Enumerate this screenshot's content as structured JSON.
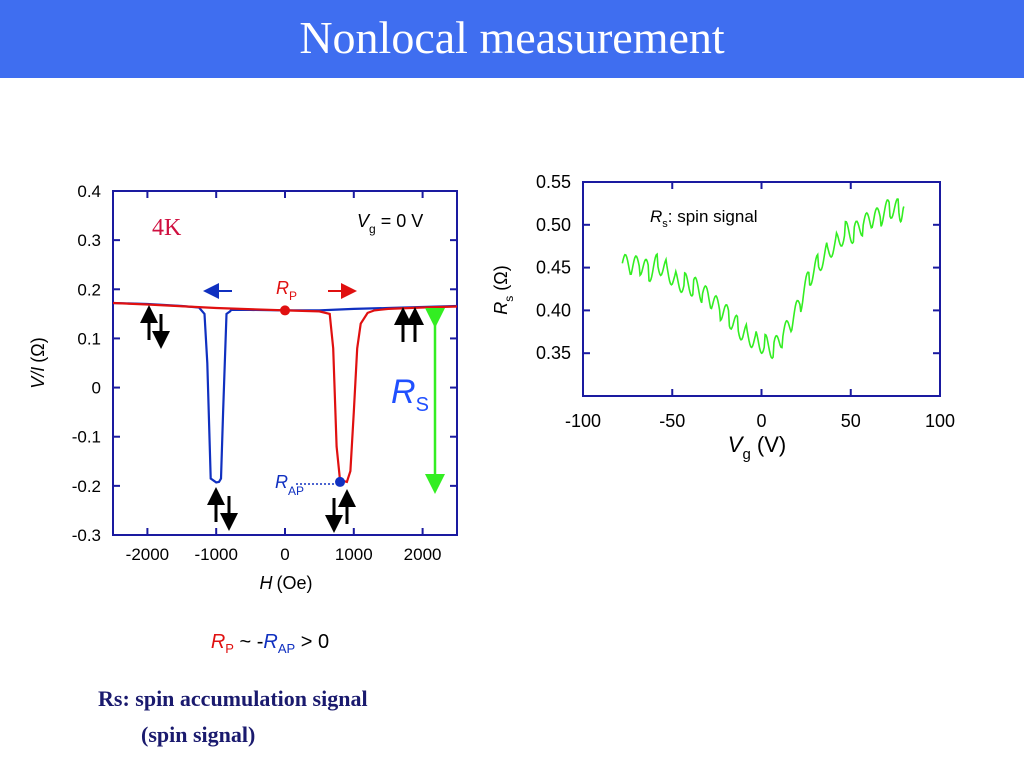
{
  "slide": {
    "title": "Nonlocal measurement",
    "caption_line1": "Rs: spin accumulation signal",
    "caption_line2": "(spin signal)",
    "relation": {
      "rp": "R",
      "rp_sub": "P",
      "mid": " ~ -",
      "rap": "R",
      "rap_sub": "AP",
      "end": " > 0"
    }
  },
  "colors": {
    "title_bg": "#3f6ef0",
    "axis": "#1a1aa0",
    "red": "#e01010",
    "blue": "#1030c0",
    "green": "#33ee22",
    "dark_red": "#d01040"
  },
  "chart_data": [
    {
      "type": "line",
      "xlabel": "H",
      "xlabel_unit": "(Oe)",
      "ylabel": "V/I",
      "ylabel_unit": "(Ω)",
      "xlim": [
        -2500,
        2500
      ],
      "ylim": [
        -0.3,
        0.4
      ],
      "xticks": [
        -2000,
        -1000,
        0,
        1000,
        2000
      ],
      "yticks": [
        0.4,
        0.3,
        0.2,
        0.1,
        0,
        -0.1,
        -0.2,
        -0.3
      ],
      "xtick_labels": [
        "-2000",
        "-1000",
        "0",
        "1000",
        "2000"
      ],
      "ytick_labels": [
        "0.4",
        "0.3",
        "0.2",
        "0.1",
        "0",
        "-0.1",
        "-0.2",
        "-0.3"
      ],
      "annotations": {
        "temp": "4K",
        "vg": "V",
        "vg_sub": "g",
        "vg_val": " = 0 V",
        "rp": "R",
        "rp_sub": "P",
        "rap": "R",
        "rap_sub": "AP",
        "rs": "R",
        "rs_sub": "S"
      },
      "series": [
        {
          "color": "blue",
          "x": [
            -2500,
            -2000,
            -1500,
            -1250,
            -1170,
            -1130,
            -1080,
            -1000,
            -960,
            -930,
            -900,
            -850,
            -800,
            -780,
            -750,
            -500,
            0,
            500,
            1000,
            1500,
            2000,
            2500
          ],
          "y": [
            0.172,
            0.17,
            0.166,
            0.163,
            0.15,
            0.05,
            -0.185,
            -0.193,
            -0.192,
            -0.185,
            -0.05,
            0.15,
            0.155,
            0.158,
            0.158,
            0.158,
            0.157,
            0.157,
            0.16,
            0.162,
            0.164,
            0.166
          ]
        },
        {
          "color": "red",
          "x": [
            -2500,
            -2000,
            -1000,
            0,
            500,
            650,
            700,
            750,
            800,
            900,
            950,
            1000,
            1050,
            1100,
            1200,
            1300,
            1500,
            2000,
            2500
          ],
          "y": [
            0.172,
            0.169,
            0.162,
            0.157,
            0.155,
            0.15,
            0.08,
            -0.12,
            -0.188,
            -0.192,
            -0.17,
            -0.05,
            0.08,
            0.13,
            0.152,
            0.157,
            0.16,
            0.163,
            0.165
          ]
        }
      ],
      "markers": [
        {
          "x": 0,
          "y": 0.157,
          "color": "red"
        },
        {
          "x": 800,
          "y": -0.192,
          "color": "blue"
        }
      ]
    },
    {
      "type": "line",
      "xlabel": "V",
      "xlabel_sub": "g",
      "xlabel_unit": " (V)",
      "ylabel": "R",
      "ylabel_sub": "s",
      "ylabel_unit": " (Ω)",
      "xlim": [
        -100,
        100
      ],
      "ylim": [
        0.3,
        0.55
      ],
      "xticks": [
        -100,
        -50,
        0,
        50,
        100
      ],
      "yticks": [
        0.55,
        0.5,
        0.45,
        0.4,
        0.35
      ],
      "xtick_labels": [
        "-100",
        "-50",
        "0",
        "50",
        "100"
      ],
      "ytick_labels": [
        "0.55",
        "0.50",
        "0.45",
        "0.40",
        "0.35"
      ],
      "legend": {
        "r": "R",
        "sub": "s",
        "text": ": spin signal"
      },
      "series": [
        {
          "color": "green",
          "x": [
            -78,
            -73,
            -68,
            -63,
            -58,
            -53,
            -48,
            -43,
            -38,
            -33,
            -28,
            -23,
            -18,
            -13,
            -8,
            -3,
            2,
            7,
            12,
            17,
            22,
            27,
            32,
            37,
            42,
            47,
            52,
            57,
            62,
            67,
            72,
            77,
            80
          ],
          "y": [
            0.455,
            0.45,
            0.453,
            0.445,
            0.455,
            0.448,
            0.435,
            0.432,
            0.428,
            0.42,
            0.41,
            0.4,
            0.392,
            0.38,
            0.372,
            0.365,
            0.36,
            0.355,
            0.37,
            0.385,
            0.41,
            0.44,
            0.455,
            0.47,
            0.48,
            0.492,
            0.49,
            0.5,
            0.505,
            0.51,
            0.52,
            0.518,
            0.51
          ]
        }
      ]
    }
  ]
}
